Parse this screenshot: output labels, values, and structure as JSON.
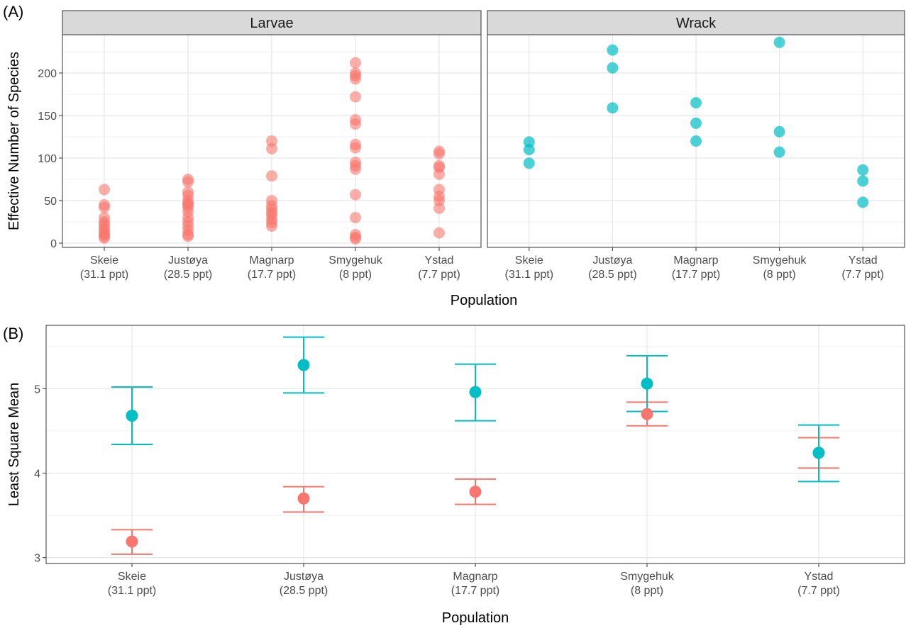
{
  "chart_data": [
    {
      "type": "scatter",
      "panel_label": "(A)",
      "ylabel": "Effective Number of Species",
      "xlabel": "Population",
      "categories": [
        "Skeie\n(31.1 ppt)",
        "Justøya\n(28.5 ppt)",
        "Magnarp\n(17.7 ppt)",
        "Smygehuk\n(8 ppt)",
        "Ystad\n(7.7 ppt)"
      ],
      "ylim": [
        -5,
        245
      ],
      "yticks": [
        0,
        50,
        100,
        150,
        200
      ],
      "grid": true,
      "facets": [
        {
          "name": "Larvae",
          "color": "#F8766D",
          "values": [
            [
              63,
              45,
              42,
              30,
              25,
              22,
              18,
              15,
              12,
              10,
              8,
              6
            ],
            [
              75,
              72,
              60,
              56,
              50,
              47,
              45,
              42,
              37,
              30,
              25,
              20,
              15,
              10,
              8
            ],
            [
              120,
              111,
              79,
              50,
              44,
              40,
              36,
              33,
              28,
              24,
              20
            ],
            [
              212,
              200,
              197,
              193,
              172,
              145,
              140,
              116,
              112,
              95,
              91,
              87,
              57,
              30,
              10,
              7,
              5
            ],
            [
              108,
              105,
              91,
              89,
              81,
              63,
              55,
              50,
              41,
              12
            ]
          ]
        },
        {
          "name": "Wrack",
          "color": "#00BFC4",
          "values": [
            [
              119,
              110,
              94
            ],
            [
              227,
              206,
              159
            ],
            [
              165,
              141,
              120
            ],
            [
              236,
              131,
              107
            ],
            [
              86,
              73,
              48
            ]
          ]
        }
      ]
    },
    {
      "type": "errorbar",
      "panel_label": "(B)",
      "ylabel": "Least Square Mean",
      "xlabel": "Population",
      "categories": [
        "Skeie\n(31.1 ppt)",
        "Justøya\n(28.5 ppt)",
        "Magnarp\n(17.7 ppt)",
        "Smygehuk\n(8 ppt)",
        "Ystad\n(7.7 ppt)"
      ],
      "ylim": [
        2.93,
        5.75
      ],
      "yticks": [
        3,
        4,
        5
      ],
      "grid": true,
      "series": [
        {
          "color": "#F8766D",
          "mean": [
            3.19,
            3.7,
            3.78,
            4.7,
            4.24
          ],
          "lower": [
            3.04,
            3.54,
            3.63,
            4.56,
            4.06
          ],
          "upper": [
            3.33,
            3.84,
            3.93,
            4.84,
            4.42
          ]
        },
        {
          "color": "#00BFC4",
          "mean": [
            4.68,
            5.28,
            4.96,
            5.06,
            4.24
          ],
          "lower": [
            4.34,
            4.95,
            4.62,
            4.73,
            3.9
          ],
          "upper": [
            5.02,
            5.61,
            5.29,
            5.39,
            4.57
          ]
        }
      ]
    }
  ]
}
